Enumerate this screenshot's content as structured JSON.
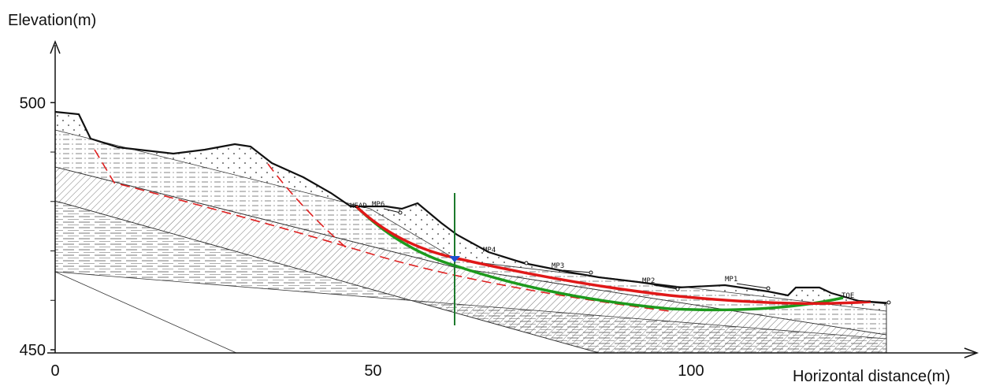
{
  "chart_data": {
    "type": "cross-section",
    "y_label": "Elevation(m)",
    "x_label": "Horizontal distance(m)",
    "xlim": [
      0,
      145
    ],
    "xticks": [
      0,
      50,
      100
    ],
    "ylim": [
      450,
      512
    ],
    "yticks": [
      450,
      500
    ],
    "yticks_minor": [
      460,
      470,
      480,
      490
    ],
    "points": [
      "HEAD",
      "MP6",
      "MP4",
      "MP3",
      "MP2",
      "MP1",
      "TOE"
    ]
  }
}
